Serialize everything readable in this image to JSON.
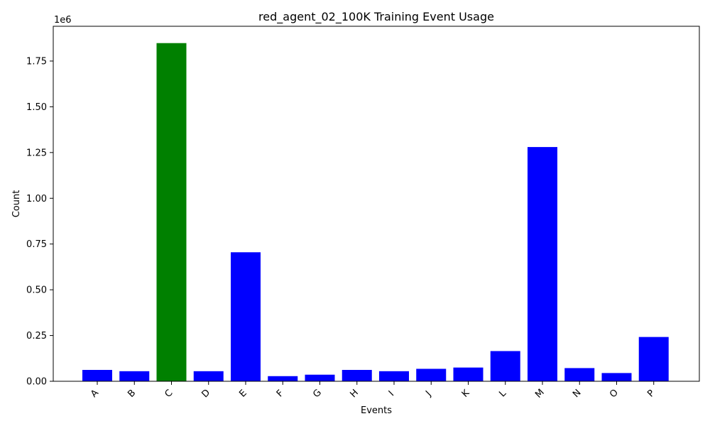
{
  "chart_data": {
    "type": "bar",
    "title": "red_agent_02_100K Training Event Usage",
    "xlabel": "Events",
    "ylabel": "Count",
    "offset_text": "1e6",
    "categories": [
      "A",
      "B",
      "C",
      "D",
      "E",
      "F",
      "G",
      "H",
      "I",
      "J",
      "K",
      "L",
      "M",
      "N",
      "O",
      "P"
    ],
    "values": [
      62000,
      55000,
      1848000,
      55000,
      705000,
      28000,
      36000,
      62000,
      55000,
      68000,
      75000,
      165000,
      1280000,
      72000,
      45000,
      242000
    ],
    "colors": [
      "#0000ff",
      "#0000ff",
      "#008000",
      "#0000ff",
      "#0000ff",
      "#0000ff",
      "#0000ff",
      "#0000ff",
      "#0000ff",
      "#0000ff",
      "#0000ff",
      "#0000ff",
      "#0000ff",
      "#0000ff",
      "#0000ff",
      "#0000ff"
    ],
    "ylim": [
      0,
      1940000
    ],
    "yticks": [
      0,
      250000,
      500000,
      750000,
      1000000,
      1250000,
      1500000,
      1750000
    ],
    "ytick_labels": [
      "0.00",
      "0.25",
      "0.50",
      "0.75",
      "1.00",
      "1.25",
      "1.50",
      "1.75"
    ],
    "grid": false,
    "legend": "none"
  }
}
